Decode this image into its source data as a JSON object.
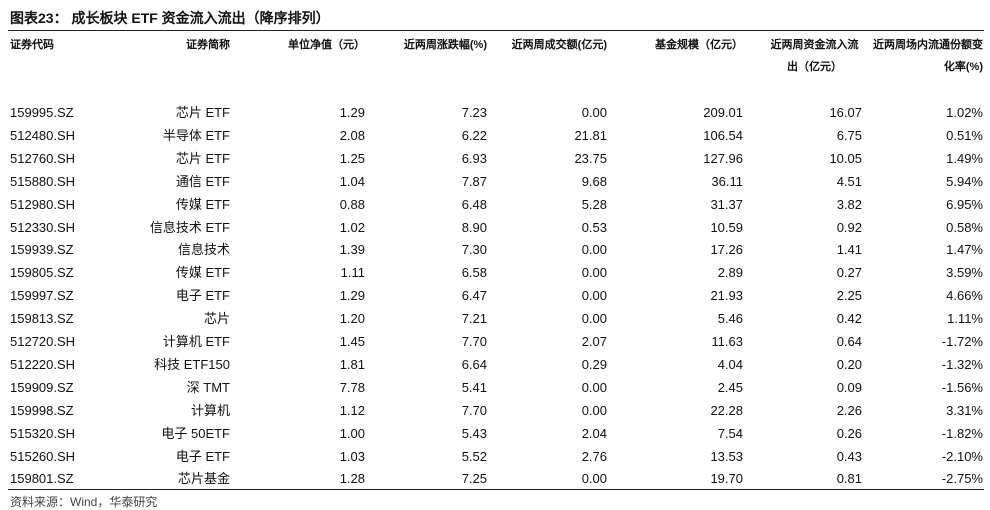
{
  "title": "图表23： 成长板块 ETF 资金流入流出（降序排列）",
  "table": {
    "header": [
      "证券代码",
      "证券简称",
      "单位净值（元）",
      "近两周涨跌幅(%)",
      "近两周成交额(亿元)",
      "基金规模（亿元）",
      "近两周资金流入流出（亿元）",
      "近两周场内流通份额变化率(%)"
    ],
    "rows": [
      [
        "159995.SZ",
        "芯片 ETF",
        "1.29",
        "7.23",
        "0.00",
        "209.01",
        "16.07",
        "1.02%"
      ],
      [
        "512480.SH",
        "半导体 ETF",
        "2.08",
        "6.22",
        "21.81",
        "106.54",
        "6.75",
        "0.51%"
      ],
      [
        "512760.SH",
        "芯片 ETF",
        "1.25",
        "6.93",
        "23.75",
        "127.96",
        "10.05",
        "1.49%"
      ],
      [
        "515880.SH",
        "通信 ETF",
        "1.04",
        "7.87",
        "9.68",
        "36.11",
        "4.51",
        "5.94%"
      ],
      [
        "512980.SH",
        "传媒 ETF",
        "0.88",
        "6.48",
        "5.28",
        "31.37",
        "3.82",
        "6.95%"
      ],
      [
        "512330.SH",
        "信息技术 ETF",
        "1.02",
        "8.90",
        "0.53",
        "10.59",
        "0.92",
        "0.58%"
      ],
      [
        "159939.SZ",
        "信息技术",
        "1.39",
        "7.30",
        "0.00",
        "17.26",
        "1.41",
        "1.47%"
      ],
      [
        "159805.SZ",
        "传媒 ETF",
        "1.11",
        "6.58",
        "0.00",
        "2.89",
        "0.27",
        "3.59%"
      ],
      [
        "159997.SZ",
        "电子 ETF",
        "1.29",
        "6.47",
        "0.00",
        "21.93",
        "2.25",
        "4.66%"
      ],
      [
        "159813.SZ",
        "芯片",
        "1.20",
        "7.21",
        "0.00",
        "5.46",
        "0.42",
        "1.11%"
      ],
      [
        "512720.SH",
        "计算机 ETF",
        "1.45",
        "7.70",
        "2.07",
        "11.63",
        "0.64",
        "-1.72%"
      ],
      [
        "512220.SH",
        "科技 ETF150",
        "1.81",
        "6.64",
        "0.29",
        "4.04",
        "0.20",
        "-1.32%"
      ],
      [
        "159909.SZ",
        "深 TMT",
        "7.78",
        "5.41",
        "0.00",
        "2.45",
        "0.09",
        "-1.56%"
      ],
      [
        "159998.SZ",
        "计算机",
        "1.12",
        "7.70",
        "0.00",
        "22.28",
        "2.26",
        "3.31%"
      ],
      [
        "515320.SH",
        "电子 50ETF",
        "1.00",
        "5.43",
        "2.04",
        "7.54",
        "0.26",
        "-1.82%"
      ],
      [
        "515260.SH",
        "电子 ETF",
        "1.03",
        "5.52",
        "2.76",
        "13.53",
        "0.43",
        "-2.10%"
      ],
      [
        "159801.SZ",
        "芯片基金",
        "1.28",
        "7.25",
        "0.00",
        "19.70",
        "0.81",
        "-2.75%"
      ]
    ]
  },
  "source": "资料来源：Wind，华泰研究"
}
